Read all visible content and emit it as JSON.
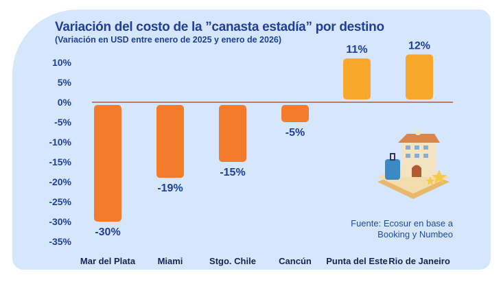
{
  "chart_data": {
    "type": "bar",
    "title": "Variación del costo de la ”canasta estadía” por destino",
    "subtitle": "(Variación en USD entre enero de 2025 y enero de 2026)",
    "categories": [
      "Mar del Plata",
      "Miami",
      "Stgo. Chile",
      "Cancún",
      "Punta del Este",
      "Rio de Janeiro"
    ],
    "values": [
      -30,
      -19,
      -15,
      -5,
      11,
      12
    ],
    "data_labels": [
      "-30%",
      "-19%",
      "-15%",
      "-5%",
      "11%",
      "12%"
    ],
    "yticks": [
      10,
      5,
      0,
      -5,
      -10,
      -15,
      -20,
      -25,
      -30,
      -35
    ],
    "ytick_labels": [
      "10%",
      "5%",
      "0%",
      "-5%",
      "-10%",
      "-15%",
      "-20%",
      "-25%",
      "-30%",
      "-35%"
    ],
    "ylim": [
      -35,
      12
    ],
    "grid": false,
    "colors": {
      "negative": "#f37b2b",
      "positive": "#f9a72b",
      "zero_line": "#b5533a",
      "text": "#1f3f9a"
    }
  },
  "source": "Fuente: Ecosur en base a Booking y Numbeo",
  "illustration": "hotel-with-suitcase-and-stars"
}
